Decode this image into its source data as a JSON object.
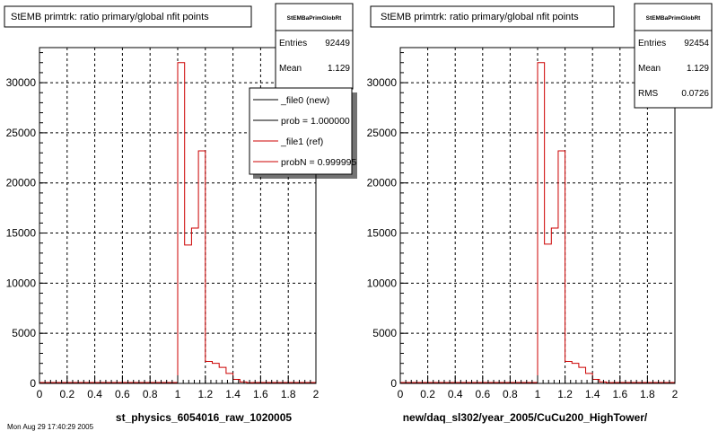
{
  "footer_text": "Mon Aug 29 17:40:29 2005",
  "chart_data": [
    {
      "type": "histogram",
      "title": "StEMB primtrk: ratio primary/global nfit points",
      "xlabel": "st_physics_6054016_raw_1020005",
      "xlim": [
        0,
        2
      ],
      "ylim": [
        0,
        33500
      ],
      "x_ticks": [
        "0",
        "0.2",
        "0.4",
        "0.6",
        "0.8",
        "1",
        "1.2",
        "1.4",
        "1.6",
        "1.8",
        "2"
      ],
      "y_ticks": [
        "0",
        "5000",
        "10000",
        "15000",
        "20000",
        "25000",
        "30000"
      ],
      "y_tick_values": [
        0,
        5000,
        10000,
        15000,
        20000,
        25000,
        30000
      ],
      "grid": true,
      "bin_edges": [
        1.0,
        1.05,
        1.1,
        1.15,
        1.2,
        1.25,
        1.3,
        1.35,
        1.4,
        1.45,
        1.5,
        1.55
      ],
      "series": [
        {
          "name": "_file1 (ref)",
          "color": "#cc0000",
          "values": [
            32000,
            13800,
            15500,
            23200,
            2200,
            2000,
            1600,
            1000,
            400,
            150,
            80
          ]
        }
      ],
      "stats": {
        "name": "StEMBaPrimGlobRt",
        "entries_label": "Entries",
        "entries": "92449",
        "mean_label": "Mean",
        "mean": "1.129"
      },
      "legend": {
        "placement": "top-right",
        "entries": [
          {
            "label": "_file0 (new)",
            "color": "#000000"
          },
          {
            "label": "prob = 1.000000",
            "color": "#000000"
          },
          {
            "label": "_file1 (ref)",
            "color": "#cc0000"
          },
          {
            "label": "probN = 0.999995",
            "color": "#cc0000"
          }
        ]
      }
    },
    {
      "type": "histogram",
      "title": "StEMB primtrk: ratio primary/global nfit points",
      "xlabel": "new/daq_sl302/year_2005/CuCu200_HighTower/",
      "xlim": [
        0,
        2
      ],
      "ylim": [
        0,
        33500
      ],
      "x_ticks": [
        "0",
        "0.2",
        "0.4",
        "0.6",
        "0.8",
        "1",
        "1.2",
        "1.4",
        "1.6",
        "1.8",
        "2"
      ],
      "y_ticks": [
        "0",
        "5000",
        "10000",
        "15000",
        "20000",
        "25000",
        "30000"
      ],
      "y_tick_values": [
        0,
        5000,
        10000,
        15000,
        20000,
        25000,
        30000
      ],
      "grid": true,
      "bin_edges": [
        1.0,
        1.05,
        1.1,
        1.15,
        1.2,
        1.25,
        1.3,
        1.35,
        1.4,
        1.45,
        1.5,
        1.55
      ],
      "series": [
        {
          "name": "",
          "color": "#cc0000",
          "values": [
            32000,
            13900,
            15500,
            23200,
            2200,
            2000,
            1600,
            1000,
            400,
            150,
            80
          ]
        }
      ],
      "stats": {
        "name": "StEMBaPrimGlobRt",
        "entries_label": "Entries",
        "entries": "92454",
        "mean_label": "Mean",
        "mean": "1.129",
        "rms_label": "RMS",
        "rms": "0.0726"
      }
    }
  ]
}
